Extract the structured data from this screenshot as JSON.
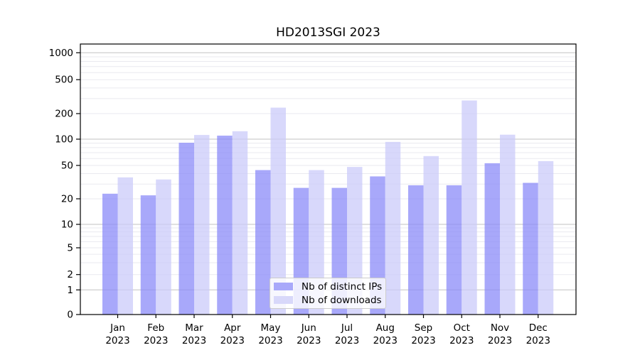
{
  "chart_data": {
    "type": "bar",
    "title": "HD2013SGI 2023",
    "categories": [
      "Jan 2023",
      "Feb 2023",
      "Mar 2023",
      "Apr 2023",
      "May 2023",
      "Jun 2023",
      "Jul 2023",
      "Aug 2023",
      "Sep 2023",
      "Oct 2023",
      "Nov 2023",
      "Dec 2023"
    ],
    "x_tick_month": [
      "Jan",
      "Feb",
      "Mar",
      "Apr",
      "May",
      "Jun",
      "Jul",
      "Aug",
      "Sep",
      "Oct",
      "Nov",
      "Dec"
    ],
    "x_tick_year": "2023",
    "series": [
      {
        "name": "Nb of distinct IPs",
        "color": "rgba(134,134,248,0.72)",
        "legend_swatch": "#a8a8fa",
        "values": [
          23,
          22,
          91,
          110,
          44,
          27,
          27,
          37,
          29,
          29,
          53,
          31
        ]
      },
      {
        "name": "Nb of downloads",
        "color": "rgba(201,201,250,0.72)",
        "legend_swatch": "#d8d8fa",
        "values": [
          36,
          34,
          112,
          124,
          235,
          44,
          48,
          93,
          64,
          285,
          113,
          56
        ]
      }
    ],
    "y_axis": {
      "scale": "symlog",
      "ticks": [
        0,
        1,
        2,
        5,
        10,
        20,
        50,
        100,
        200,
        500,
        1000
      ],
      "ylim": [
        0,
        1300
      ]
    },
    "grid": {
      "major_at": [
        1,
        10,
        100,
        1000
      ],
      "minor": "log sub-decades 2-9, 20-90, 200-900",
      "vertical": false
    },
    "legend": {
      "location": "lower center"
    },
    "colors": {
      "grid_major": "#c2c2c2",
      "grid_minor": "#eaeaef",
      "axis": "#000000",
      "background": "#ffffff"
    }
  }
}
